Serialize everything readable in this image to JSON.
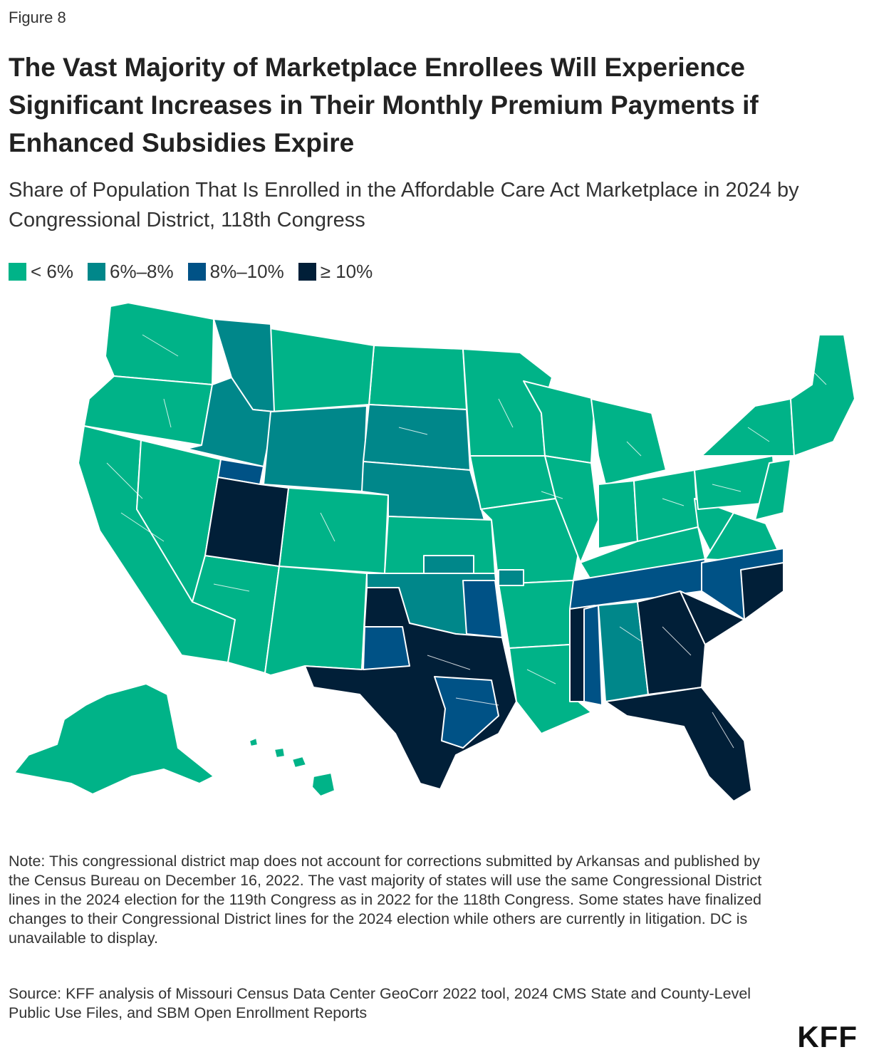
{
  "figure_label": "Figure 8",
  "title": "The Vast Majority of Marketplace Enrollees Will Experience Significant Increases in Their Monthly Premium Payments if Enhanced Subsidies Expire",
  "subtitle": "Share of Population That Is Enrolled in the Affordable Care Act Marketplace in 2024 by Congressional District, 118th Congress",
  "legend": [
    {
      "label": "< 6%",
      "color": "#00b388"
    },
    {
      "label": "6%–8%",
      "color": "#00878a"
    },
    {
      "label": "8%–10%",
      "color": "#005286"
    },
    {
      "label": "≥ 10%",
      "color": "#011f38"
    }
  ],
  "map_data": {
    "type": "choropleth",
    "geography": "US congressional districts, 118th Congress",
    "bin_colors": {
      "lt6": "#00b388",
      "b6_8": "#00878a",
      "b8_10": "#005286",
      "ge10": "#011f38"
    },
    "state_bins_approx": {
      "ge10": [
        "UT",
        "TX",
        "MS",
        "GA",
        "SC",
        "FL"
      ],
      "b8_10": [
        "TN",
        "NC",
        "OK",
        "TX (part)",
        "MS (part)",
        "ID (part)"
      ],
      "b6_8": [
        "MT (part)",
        "ID",
        "WY",
        "SD",
        "NE",
        "KS (part)",
        "OK",
        "AL",
        "AR (part)"
      ],
      "lt6": [
        "WA",
        "OR",
        "CA",
        "NV",
        "AZ",
        "NM",
        "CO",
        "ND",
        "MN",
        "IA",
        "MO",
        "WI",
        "IL",
        "MI",
        "IN",
        "OH",
        "KY",
        "WV",
        "VA",
        "PA",
        "NY",
        "ME",
        "VT",
        "NH",
        "MA",
        "CT",
        "RI",
        "NJ",
        "DE",
        "MD",
        "AR",
        "LA",
        "AK",
        "HI"
      ]
    }
  },
  "notes": "Note: This congressional district map does not account for corrections submitted by Arkansas and published by the Census Bureau on December 16, 2022. The vast majority of states will use the same Congressional District lines in the 2024 election for the 119th Congress as in 2022 for the 118th Congress. Some states have finalized changes to their Congressional District lines for the 2024 election while others are currently in litigation. DC is unavailable to display.",
  "source": "Source: KFF analysis of Missouri Census Data Center GeoCorr 2022 tool, 2024 CMS State and County-Level Public Use Files, and SBM Open Enrollment Reports",
  "logo_text": "KFF"
}
